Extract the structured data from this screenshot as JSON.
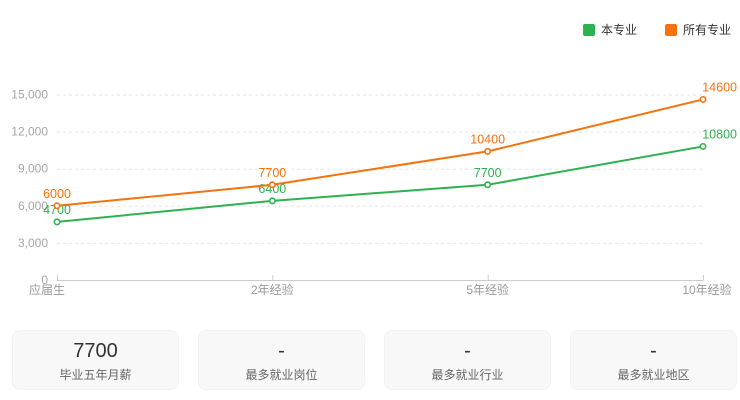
{
  "legend": {
    "items": [
      {
        "label": "本专业",
        "color": "#2eb150"
      },
      {
        "label": "所有专业",
        "color": "#f5720d"
      }
    ]
  },
  "chart_data": {
    "type": "line",
    "title": "",
    "xlabel": "",
    "ylabel": "",
    "categories": [
      "应届生",
      "2年经验",
      "5年经验",
      "10年经验"
    ],
    "series": [
      {
        "name": "本专业",
        "color": "#2eb150",
        "values": [
          4700,
          6400,
          7700,
          10800
        ]
      },
      {
        "name": "所有专业",
        "color": "#f5720d",
        "values": [
          6000,
          7700,
          10400,
          14600
        ]
      }
    ],
    "ylim": [
      0,
      15000
    ],
    "y_ticks": [
      0,
      3000,
      6000,
      9000,
      12000,
      15000
    ],
    "grid": "horizontal-dashed",
    "legend_position": "top-right",
    "point_labels": true
  },
  "summary_cards": [
    {
      "value": "7700",
      "label": "毕业五年月薪"
    },
    {
      "value": "-",
      "label": "最多就业岗位"
    },
    {
      "value": "-",
      "label": "最多就业行业"
    },
    {
      "value": "-",
      "label": "最多就业地区"
    }
  ],
  "colors": {
    "axis_text": "#999999",
    "grid_line": "#e6e6e6",
    "axis_line": "#cccccc",
    "card_bg": "#f8f8f8"
  }
}
